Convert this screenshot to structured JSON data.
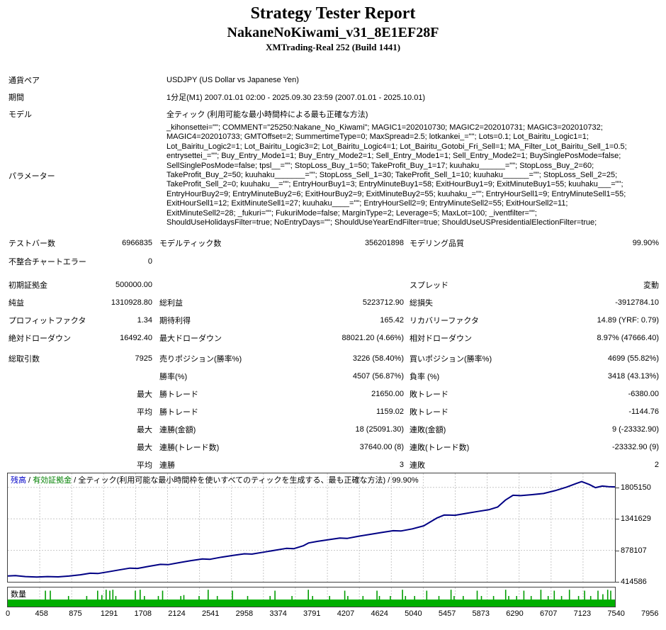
{
  "header": {
    "title": "Strategy Tester Report",
    "ea_name": "NakaneNoKiwami_v31_8E1EF28F",
    "server": "XMTrading-Real 252 (Build 1441)"
  },
  "info": {
    "rows": [
      {
        "label": "通貨ペア",
        "value": "USDJPY (US Dollar vs Japanese Yen)"
      },
      {
        "label": "期間",
        "value": "1分足(M1) 2007.01.01 02:00 - 2025.09.30 23:59 (2007.01.01 - 2025.10.01)"
      },
      {
        "label": "モデル",
        "value": "全ティック (利用可能な最小時間枠による最も正確な方法)"
      }
    ]
  },
  "parameters": {
    "label": "パラメーター",
    "lines": [
      "_kihonsettei=\"\"; COMMENT=\"25250:Nakane_No_Kiwami\"; MAGIC1=202010730; MAGIC2=202010731; MAGIC3=202010732;",
      "MAGIC4=202010733; GMTOffset=2; SummertimeType=0; MaxSpread=2.5; lotkankei_=\"\"; Lots=0.1; Lot_Bairitu_Logic1=1;",
      "Lot_Bairitu_Logic2=1; Lot_Bairitu_Logic3=2; Lot_Bairitu_Logic4=1; Lot_Bairitu_Gotobi_Fri_Sell=1; MA_Filter_Lot_Bairitu_Sell_1=0.5;",
      "entrysettei_=\"\"; Buy_Entry_Mode1=1; Buy_Entry_Mode2=1; Sell_Entry_Mode1=1; Sell_Entry_Mode2=1; BuySinglePosMode=false;",
      "SellSinglePosMode=false; tpsl__=\"\"; StopLoss_Buy_1=50; TakeProfit_Buy_1=17; kuuhaku______=\"\"; StopLoss_Buy_2=60;",
      "TakeProfit_Buy_2=50; kuuhaku_______=\"\"; StopLoss_Sell_1=30; TakeProfit_Sell_1=10; kuuhaku______=\"\"; StopLoss_Sell_2=25;",
      "TakeProfit_Sell_2=0; kuuhaku__=\"\"; EntryHourBuy1=3; EntryMinuteBuy1=58; ExitHourBuy1=9; ExitMinuteBuy1=55; kuuhaku___=\"\";",
      "EntryHourBuy2=9; EntryMinuteBuy2=6; ExitHourBuy2=9; ExitMinuteBuy2=55; kuuhaku_=\"\"; EntryHourSell1=9; EntryMinuteSell1=55;",
      "ExitHourSell1=12; ExitMinuteSell1=27; kuuhaku____=\"\"; EntryHourSell2=9; EntryMinuteSell2=55; ExitHourSell2=11;",
      "ExitMinuteSell2=28; _fukuri=\"\"; FukuriMode=false; MarginType=2; Leverage=5; MaxLot=100; _iventfilter=\"\";",
      "ShouldUseHolidaysFilter=true; NoEntryDays=\"\"; ShouldUseYearEndFilter=true; ShouldUseUSPresidentialElectionFilter=true;"
    ]
  },
  "stats": {
    "rows": [
      {
        "c1": "テストバー数",
        "c2": "6966835",
        "c3": "モデルティック数",
        "c4": "356201898",
        "c5": "モデリング品質",
        "c6": "99.90%"
      },
      {
        "c1": "不整合チャートエラー",
        "c2": "0",
        "c3": "",
        "c4": "",
        "c5": "",
        "c6": ""
      },
      {
        "c1": "初期証拠金",
        "c2": "500000.00",
        "c3": "",
        "c4": "",
        "c5": "スプレッド",
        "c6": "変動"
      },
      {
        "c1": "純益",
        "c2": "1310928.80",
        "c3": "総利益",
        "c4": "5223712.90",
        "c5": "総損失",
        "c6": "-3912784.10"
      },
      {
        "c1": "プロフィットファクタ",
        "c2": "1.34",
        "c3": "期待利得",
        "c4": "165.42",
        "c5": "リカバリーファクタ",
        "c6": "14.89 (YRF: 0.79)"
      },
      {
        "c1": "絶対ドローダウン",
        "c2": "16492.40",
        "c3": "最大ドローダウン",
        "c4": "88021.20 (4.66%)",
        "c5": "相対ドローダウン",
        "c6": "8.97% (47666.40)"
      },
      {
        "c1": "総取引数",
        "c2": "7925",
        "c3": "売りポジション(勝率%)",
        "c4": "3226 (58.40%)",
        "c5": "買いポジション(勝率%)",
        "c6": "4699 (55.82%)"
      },
      {
        "c1": "",
        "c2": "",
        "c3": "勝率(%)",
        "c4": "4507 (56.87%)",
        "c5": "負率 (%)",
        "c6": "3418 (43.13%)"
      },
      {
        "c1": "",
        "c2": "最大",
        "c3": "勝トレード",
        "c4": "21650.00",
        "c5": "敗トレード",
        "c6": "-6380.00"
      },
      {
        "c1": "",
        "c2": "平均",
        "c3": "勝トレード",
        "c4": "1159.02",
        "c5": "敗トレード",
        "c6": "-1144.76"
      },
      {
        "c1": "",
        "c2": "最大",
        "c3": "連勝(金額)",
        "c4": "18 (25091.30)",
        "c5": "連敗(金額)",
        "c6": "9 (-23332.90)"
      },
      {
        "c1": "",
        "c2": "最大",
        "c3": "連勝(トレード数)",
        "c4": "37640.00 (8)",
        "c5": "連敗(トレード数)",
        "c6": "-23332.90 (9)"
      },
      {
        "c1": "",
        "c2": "平均",
        "c3": "連勝",
        "c4": "3",
        "c5": "連敗",
        "c6": "2"
      }
    ]
  },
  "chart_data": {
    "type": "line",
    "legend": {
      "balance_label": "残高",
      "equity_label": "有効証拠金",
      "model_label": "全ティック(利用可能な最小時間枠を使いすべてのティックを生成する、最も正確な方法)",
      "quality": "99.90%",
      "separator": " / "
    },
    "volume_label": "数量",
    "x_max": 7956,
    "y_min": 414586,
    "y_span": 1595598,
    "y_ticks": [
      1805150,
      1341629,
      878107,
      414586
    ],
    "x_ticks": [
      "0",
      "458",
      "875",
      "1291",
      "1708",
      "2124",
      "2541",
      "2958",
      "3374",
      "3791",
      "4207",
      "4624",
      "5040",
      "5457",
      "5873",
      "6290",
      "6707",
      "7123",
      "7540",
      "7956"
    ],
    "balance_points": [
      [
        0,
        500000
      ],
      [
        100,
        505500
      ],
      [
        230,
        492000
      ],
      [
        380,
        484000
      ],
      [
        520,
        491500
      ],
      [
        660,
        487500
      ],
      [
        800,
        499000
      ],
      [
        950,
        518000
      ],
      [
        1080,
        541000
      ],
      [
        1180,
        537000
      ],
      [
        1320,
        563000
      ],
      [
        1460,
        590000
      ],
      [
        1600,
        616000
      ],
      [
        1700,
        612000
      ],
      [
        1850,
        643000
      ],
      [
        2000,
        671000
      ],
      [
        2100,
        667000
      ],
      [
        2250,
        697000
      ],
      [
        2400,
        726000
      ],
      [
        2550,
        751000
      ],
      [
        2650,
        746000
      ],
      [
        2800,
        778000
      ],
      [
        2950,
        804000
      ],
      [
        3100,
        827000
      ],
      [
        3200,
        822000
      ],
      [
        3350,
        851000
      ],
      [
        3500,
        879000
      ],
      [
        3650,
        907000
      ],
      [
        3750,
        903000
      ],
      [
        3870,
        944000
      ],
      [
        3940,
        986000
      ],
      [
        4060,
        1010000
      ],
      [
        4200,
        1034000
      ],
      [
        4350,
        1059000
      ],
      [
        4450,
        1054000
      ],
      [
        4600,
        1086000
      ],
      [
        4750,
        1113000
      ],
      [
        4900,
        1140000
      ],
      [
        5050,
        1167000
      ],
      [
        5150,
        1162000
      ],
      [
        5300,
        1194000
      ],
      [
        5450,
        1238000
      ],
      [
        5530,
        1292000
      ],
      [
        5620,
        1352000
      ],
      [
        5720,
        1398000
      ],
      [
        5860,
        1394000
      ],
      [
        6010,
        1422000
      ],
      [
        6160,
        1450000
      ],
      [
        6310,
        1477000
      ],
      [
        6420,
        1516000
      ],
      [
        6520,
        1617000
      ],
      [
        6620,
        1688000
      ],
      [
        6720,
        1683000
      ],
      [
        6870,
        1697000
      ],
      [
        7020,
        1714000
      ],
      [
        7170,
        1756000
      ],
      [
        7320,
        1808000
      ],
      [
        7450,
        1862000
      ],
      [
        7520,
        1889000
      ],
      [
        7620,
        1846000
      ],
      [
        7700,
        1801000
      ],
      [
        7790,
        1824000
      ],
      [
        7870,
        1815000
      ],
      [
        7956,
        1810929
      ]
    ],
    "volume_band_fraction": 0.37,
    "volume_spikes": [
      [
        0.012,
        0.85
      ],
      [
        0.02,
        0.6
      ],
      [
        0.028,
        0.6
      ],
      [
        0.062,
        0.9
      ],
      [
        0.07,
        0.9
      ],
      [
        0.1,
        0.6
      ],
      [
        0.13,
        0.6
      ],
      [
        0.148,
        0.9
      ],
      [
        0.155,
        0.65
      ],
      [
        0.162,
        0.95
      ],
      [
        0.168,
        0.9
      ],
      [
        0.173,
        0.95
      ],
      [
        0.178,
        0.6
      ],
      [
        0.21,
        0.9
      ],
      [
        0.218,
        0.95
      ],
      [
        0.225,
        0.6
      ],
      [
        0.248,
        0.6
      ],
      [
        0.255,
        0.9
      ],
      [
        0.285,
        0.6
      ],
      [
        0.29,
        0.65
      ],
      [
        0.315,
        0.6
      ],
      [
        0.33,
        0.95
      ],
      [
        0.345,
        0.6
      ],
      [
        0.37,
        0.9
      ],
      [
        0.395,
        0.6
      ],
      [
        0.432,
        0.6
      ],
      [
        0.44,
        0.9
      ],
      [
        0.468,
        0.6
      ],
      [
        0.495,
        0.95
      ],
      [
        0.502,
        0.6
      ],
      [
        0.53,
        0.6
      ],
      [
        0.555,
        0.9
      ],
      [
        0.56,
        0.6
      ],
      [
        0.585,
        0.6
      ],
      [
        0.608,
        0.9
      ],
      [
        0.612,
        0.6
      ],
      [
        0.63,
        0.6
      ],
      [
        0.65,
        0.95
      ],
      [
        0.655,
        0.6
      ],
      [
        0.67,
        0.6
      ],
      [
        0.69,
        0.9
      ],
      [
        0.71,
        0.6
      ],
      [
        0.73,
        0.95
      ],
      [
        0.735,
        0.6
      ],
      [
        0.75,
        0.6
      ],
      [
        0.773,
        0.9
      ],
      [
        0.78,
        0.6
      ],
      [
        0.8,
        0.6
      ],
      [
        0.82,
        0.95
      ],
      [
        0.825,
        0.6
      ],
      [
        0.838,
        0.6
      ],
      [
        0.85,
        0.9
      ],
      [
        0.862,
        0.6
      ],
      [
        0.878,
        0.95
      ],
      [
        0.89,
        0.6
      ],
      [
        0.9,
        0.9
      ],
      [
        0.912,
        0.6
      ],
      [
        0.925,
        0.95
      ],
      [
        0.94,
        0.6
      ],
      [
        0.95,
        0.9
      ],
      [
        0.96,
        0.6
      ],
      [
        0.972,
        0.9
      ],
      [
        0.98,
        0.7
      ],
      [
        0.988,
        0.95
      ],
      [
        0.993,
        0.9
      ]
    ],
    "colors": {
      "balance_line": "#000084",
      "legend_balance": "#0000C8",
      "legend_equity": "#008000",
      "grid": "#c8c8c8",
      "volume_spike": "#009c00",
      "volume_band": "#00ae00",
      "border": "#404040"
    }
  }
}
